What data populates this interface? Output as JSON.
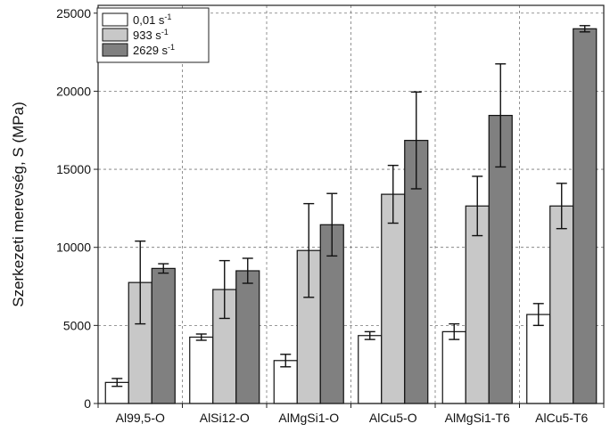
{
  "chart_data": {
    "type": "bar",
    "ylabel": "Szerkezeti merevség, S (MPa)",
    "xlabel": "",
    "title": "",
    "ylim": [
      0,
      25500
    ],
    "yticks": [
      0,
      5000,
      10000,
      15000,
      20000,
      25000
    ],
    "grid": true,
    "legend_position": "top-left",
    "categories": [
      "Al99,5-O",
      "AlSi12-O",
      "AlMgSi1-O",
      "AlCu5-O",
      "AlMgSi1-T6",
      "AlCu5-T6"
    ],
    "series": [
      {
        "name": "0,01 s",
        "name_sup": "-1",
        "color": "#ffffff",
        "values": [
          1350,
          4250,
          2750,
          4350,
          4600,
          5700
        ],
        "errors": [
          250,
          200,
          400,
          250,
          500,
          700
        ]
      },
      {
        "name": "933 s",
        "name_sup": "-1",
        "color": "#c8c8c8",
        "values": [
          7750,
          7300,
          9800,
          13400,
          12650,
          12650
        ],
        "errors": [
          2650,
          1850,
          3000,
          1850,
          1900,
          1450
        ]
      },
      {
        "name": "2629 s",
        "name_sup": "-1",
        "color": "#808080",
        "values": [
          8650,
          8500,
          11450,
          16850,
          18450,
          24000
        ],
        "errors": [
          300,
          800,
          2000,
          3100,
          3300,
          200
        ]
      }
    ]
  }
}
